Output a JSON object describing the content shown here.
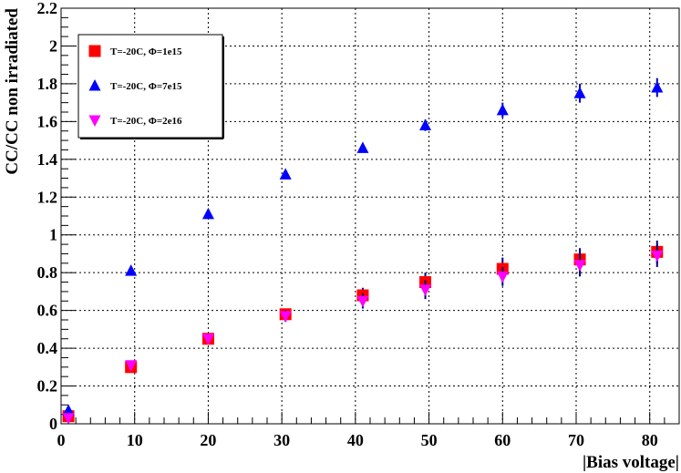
{
  "chart_data": {
    "type": "scatter",
    "xlabel": "|Bias voltage|",
    "ylabel": "CC/CC non irradiated",
    "xlim": [
      0,
      84
    ],
    "ylim": [
      0,
      2.2
    ],
    "x_ticks": [
      "0",
      "10",
      "20",
      "30",
      "40",
      "50",
      "60",
      "70",
      "80"
    ],
    "y_ticks": [
      "0",
      "0.2",
      "0.4",
      "0.6",
      "0.8",
      "1",
      "1.2",
      "1.4",
      "1.6",
      "1.8",
      "2",
      "2.2"
    ],
    "grid": true,
    "legend_position": "top-left",
    "series": [
      {
        "name": "T=-20C, Φ=1e15",
        "marker": "square",
        "color": "#ff0000",
        "x": [
          1,
          9.5,
          20,
          30.5,
          41,
          49.5,
          60,
          70.5,
          81
        ],
        "y": [
          0.04,
          0.3,
          0.45,
          0.58,
          0.68,
          0.75,
          0.82,
          0.87,
          0.91
        ],
        "err": [
          0.02,
          0.02,
          0.02,
          0.03,
          0.04,
          0.05,
          0.06,
          0.06,
          0.06
        ]
      },
      {
        "name": "T=-20C, Φ=7e15",
        "marker": "triangle-up",
        "color": "#0000ff",
        "x": [
          1,
          9.5,
          20,
          30.5,
          41,
          49.5,
          60,
          70.5,
          81
        ],
        "y": [
          0.07,
          0.81,
          1.11,
          1.32,
          1.46,
          1.58,
          1.66,
          1.75,
          1.78
        ],
        "err": [
          0.01,
          0.01,
          0.01,
          0.02,
          0.02,
          0.03,
          0.04,
          0.05,
          0.05
        ]
      },
      {
        "name": "T=-20C, Φ=2e16",
        "marker": "triangle-down",
        "color": "#ff00ff",
        "x": [
          1,
          9.5,
          20,
          30.5,
          41,
          49.5,
          60,
          70.5,
          81
        ],
        "y": [
          0.03,
          0.31,
          0.45,
          0.57,
          0.65,
          0.71,
          0.78,
          0.84,
          0.89
        ],
        "err": [
          0.01,
          0.02,
          0.02,
          0.03,
          0.04,
          0.05,
          0.05,
          0.06,
          0.06
        ]
      }
    ]
  }
}
